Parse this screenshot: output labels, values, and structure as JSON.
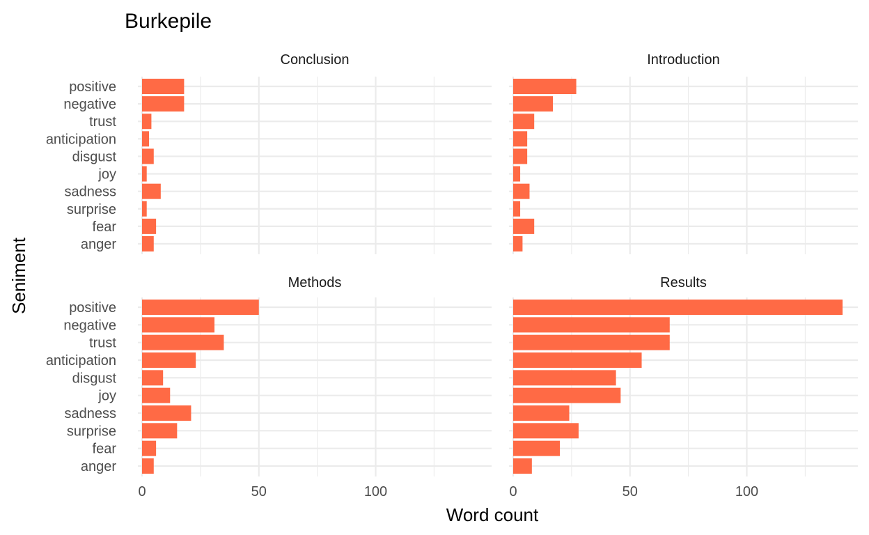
{
  "chart_data": {
    "type": "bar",
    "orientation": "horizontal",
    "title": "Burkepile",
    "xlabel": "Word count",
    "ylabel": "Seniment",
    "xlim": [
      0,
      141
    ],
    "x_ticks": [
      0,
      50,
      100
    ],
    "grid": true,
    "legend": "none",
    "bar_color": "#FF6A45",
    "categories": [
      "positive",
      "negative",
      "trust",
      "anticipation",
      "disgust",
      "joy",
      "sadness",
      "surprise",
      "fear",
      "anger"
    ],
    "facets": [
      {
        "name": "Conclusion",
        "values": [
          18,
          18,
          4,
          3,
          5,
          2,
          8,
          2,
          6,
          5
        ]
      },
      {
        "name": "Introduction",
        "values": [
          27,
          17,
          9,
          6,
          6,
          3,
          7,
          3,
          9,
          4
        ]
      },
      {
        "name": "Methods",
        "values": [
          50,
          31,
          35,
          23,
          9,
          12,
          21,
          15,
          6,
          5
        ]
      },
      {
        "name": "Results",
        "values": [
          141,
          67,
          67,
          55,
          44,
          46,
          24,
          28,
          20,
          8
        ]
      }
    ]
  }
}
